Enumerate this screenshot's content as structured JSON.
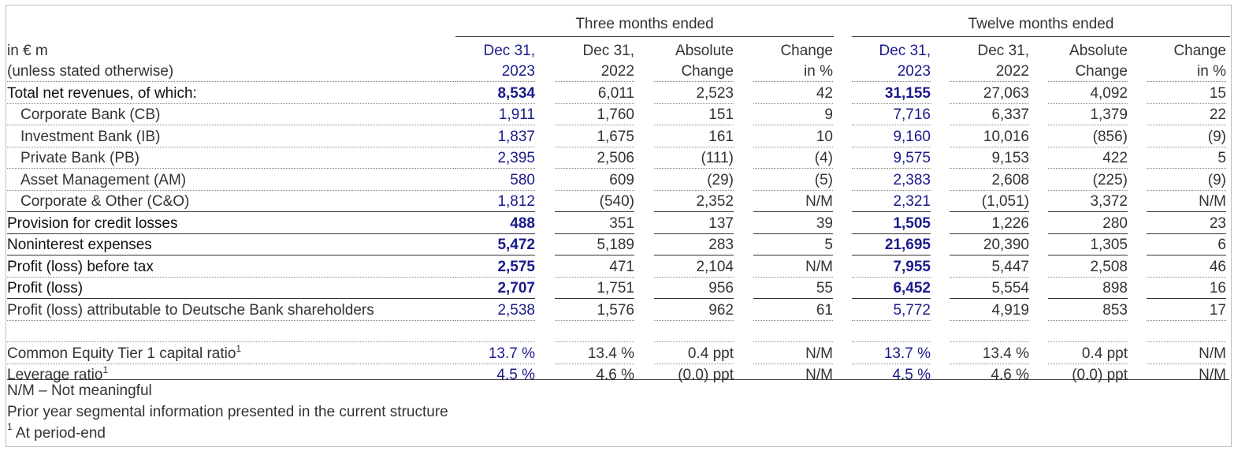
{
  "groups": {
    "three_months": "Three months ended",
    "twelve_months": "Twelve months ended"
  },
  "header": {
    "unit_line1": "in € m",
    "unit_line2": "(unless stated otherwise)",
    "columns": [
      {
        "line1": "Dec 31,",
        "line2": "2023"
      },
      {
        "line1": "Dec 31,",
        "line2": "2022"
      },
      {
        "line1": "Absolute",
        "line2": "Change"
      },
      {
        "line1": "Change",
        "line2": "in %"
      },
      {
        "line1": "Dec 31,",
        "line2": "2023"
      },
      {
        "line1": "Dec 31,",
        "line2": "2022"
      },
      {
        "line1": "Absolute",
        "line2": "Change"
      },
      {
        "line1": "Change",
        "line2": "in %"
      }
    ]
  },
  "rows": [
    {
      "label": "Total net revenues, of which:",
      "values": [
        "8,534",
        "6,011",
        "2,523",
        "42",
        "31,155",
        "27,063",
        "4,092",
        "15"
      ]
    },
    {
      "label": "Corporate Bank (CB)",
      "values": [
        "1,911",
        "1,760",
        "151",
        "9",
        "7,716",
        "6,337",
        "1,379",
        "22"
      ]
    },
    {
      "label": "Investment Bank (IB)",
      "values": [
        "1,837",
        "1,675",
        "161",
        "10",
        "9,160",
        "10,016",
        "(856)",
        "(9)"
      ]
    },
    {
      "label": "Private Bank (PB)",
      "values": [
        "2,395",
        "2,506",
        "(111)",
        "(4)",
        "9,575",
        "9,153",
        "422",
        "5"
      ]
    },
    {
      "label": "Asset Management (AM)",
      "values": [
        "580",
        "609",
        "(29)",
        "(5)",
        "2,383",
        "2,608",
        "(225)",
        "(9)"
      ]
    },
    {
      "label": "Corporate & Other (C&O)",
      "values": [
        "1,812",
        "(540)",
        "2,352",
        "N/M",
        "2,321",
        "(1,051)",
        "3,372",
        "N/M"
      ]
    },
    {
      "label": "Provision for credit losses",
      "values": [
        "488",
        "351",
        "137",
        "39",
        "1,505",
        "1,226",
        "280",
        "23"
      ]
    },
    {
      "label": "Noninterest expenses",
      "values": [
        "5,472",
        "5,189",
        "283",
        "5",
        "21,695",
        "20,390",
        "1,305",
        "6"
      ]
    },
    {
      "label": "Profit (loss) before tax",
      "values": [
        "2,575",
        "471",
        "2,104",
        "N/M",
        "7,955",
        "5,447",
        "2,508",
        "46"
      ]
    },
    {
      "label": "Profit (loss)",
      "values": [
        "2,707",
        "1,751",
        "956",
        "55",
        "6,452",
        "5,554",
        "898",
        "16"
      ]
    },
    {
      "label": "Profit (loss) attributable to Deutsche Bank shareholders",
      "values": [
        "2,538",
        "1,576",
        "962",
        "61",
        "5,772",
        "4,919",
        "853",
        "17"
      ]
    },
    {
      "label": "Common Equity Tier 1 capital ratio",
      "footnote": "1",
      "values": [
        "13.7 %",
        "13.4 %",
        "0.4  ppt",
        "N/M",
        "13.7 %",
        "13.4 %",
        "0.4  ppt",
        "N/M"
      ]
    },
    {
      "label": "Leverage ratio",
      "footnote": "1",
      "values": [
        "4.5 %",
        "4.6 %",
        "(0.0) ppt",
        "N/M",
        "4.5 %",
        "4.6 %",
        "(0.0) ppt",
        "N/M"
      ]
    }
  ],
  "notes": {
    "nm": "N/M – Not meaningful",
    "segmental": "Prior year segmental information presented in the current structure",
    "footnote_mark": "1",
    "footnote_text": " At period-end"
  },
  "colors": {
    "current_period": "#1a1a8c",
    "text": "#333333"
  }
}
